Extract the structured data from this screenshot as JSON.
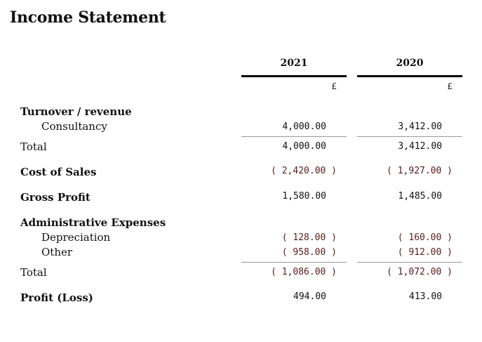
{
  "title": "Income Statement",
  "columns": [
    {
      "year": "2021",
      "currency": "£"
    },
    {
      "year": "2020",
      "currency": "£"
    }
  ],
  "sections": {
    "turnover": {
      "heading": "Turnover / revenue",
      "consultancy_label": "Consultancy",
      "consultancy": [
        "4,000.00",
        "3,412.00"
      ],
      "total_label": "Total",
      "total": [
        "4,000.00",
        "3,412.00"
      ]
    },
    "cost_of_sales": {
      "label": "Cost of Sales",
      "values": [
        "( 2,420.00 )",
        "( 1,927.00 )"
      ]
    },
    "gross_profit": {
      "label": "Gross Profit",
      "values": [
        "1,580.00",
        "1,485.00"
      ]
    },
    "admin": {
      "heading": "Administrative Expenses",
      "depreciation_label": "Depreciation",
      "depreciation": [
        "( 128.00 )",
        "( 160.00 )"
      ],
      "other_label": "Other",
      "other": [
        "( 958.00 )",
        "( 912.00 )"
      ],
      "total_label": "Total",
      "total": [
        "( 1,086.00 )",
        "( 1,072.00 )"
      ]
    },
    "profit": {
      "label": "Profit (Loss)",
      "values": [
        "494.00",
        "413.00"
      ]
    }
  }
}
